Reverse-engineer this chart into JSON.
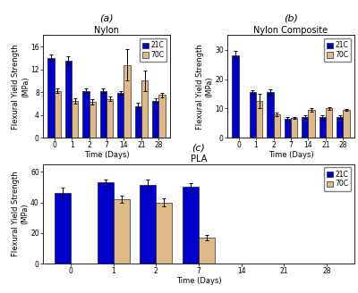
{
  "subplots": [
    {
      "label": "(a)",
      "title": "Nylon",
      "ylabel": "Flexural Yield Strength\n(MPa)",
      "xlabel": "Time (Days)",
      "ylim": [
        0,
        18
      ],
      "yticks": [
        0,
        4,
        8,
        12,
        16
      ],
      "categories": [
        "0",
        "1",
        "2",
        "7",
        "14",
        "21",
        "28"
      ],
      "val_21C": [
        14.0,
        13.5,
        8.2,
        8.2,
        7.9,
        5.5,
        6.5
      ],
      "val_70C": [
        8.2,
        6.5,
        6.3,
        6.8,
        12.8,
        10.0,
        7.5
      ],
      "err_21C": [
        0.6,
        0.8,
        0.4,
        0.4,
        0.3,
        0.7,
        0.4
      ],
      "err_70C": [
        0.4,
        0.5,
        0.4,
        0.4,
        2.8,
        1.8,
        0.4
      ],
      "mask_21C": [
        1,
        1,
        1,
        1,
        1,
        1,
        1
      ],
      "mask_70C": [
        1,
        1,
        1,
        1,
        1,
        1,
        1
      ]
    },
    {
      "label": "(b)",
      "title": "Nylon Composite",
      "ylabel": "Flexural Yield Strength\n(MPa)",
      "xlabel": "Time (Days)",
      "ylim": [
        0,
        35
      ],
      "yticks": [
        0,
        10,
        20,
        30
      ],
      "categories": [
        "0",
        "1",
        "2",
        "7",
        "14",
        "21",
        "28"
      ],
      "val_21C": [
        28.0,
        15.5,
        15.5,
        6.5,
        7.2,
        7.2,
        7.2
      ],
      "val_70C": [
        0.0,
        12.5,
        8.0,
        6.8,
        9.5,
        10.0,
        9.5
      ],
      "err_21C": [
        1.5,
        0.8,
        0.9,
        0.5,
        0.5,
        0.5,
        0.4
      ],
      "err_70C": [
        0.0,
        2.5,
        0.5,
        0.4,
        0.7,
        0.5,
        0.4
      ],
      "mask_21C": [
        1,
        1,
        1,
        1,
        1,
        1,
        1
      ],
      "mask_70C": [
        0,
        1,
        1,
        1,
        1,
        1,
        1
      ]
    },
    {
      "label": "(c)",
      "title": "PLA",
      "ylabel": "Flexural Yield Strength\n(MPa)",
      "xlabel": "Time (Days)",
      "ylim": [
        0,
        65
      ],
      "yticks": [
        0,
        20,
        40,
        60
      ],
      "categories": [
        "0",
        "1",
        "2",
        "7",
        "14",
        "21",
        "28"
      ],
      "val_21C": [
        46.0,
        53.0,
        51.5,
        50.0,
        0.0,
        0.0,
        0.0
      ],
      "val_70C": [
        0.0,
        42.0,
        40.0,
        17.0,
        0.0,
        0.0,
        0.0
      ],
      "err_21C": [
        3.5,
        2.0,
        3.5,
        2.5,
        0.0,
        0.0,
        0.0
      ],
      "err_70C": [
        0.0,
        2.5,
        2.5,
        2.0,
        0.0,
        0.0,
        0.0
      ],
      "mask_21C": [
        1,
        1,
        1,
        1,
        0,
        0,
        0
      ],
      "mask_70C": [
        0,
        1,
        1,
        1,
        0,
        0,
        0
      ]
    }
  ],
  "color_21C": "#0000cc",
  "color_70C": "#deb887",
  "bar_width": 0.38,
  "legend_labels": [
    "21C",
    "70C"
  ],
  "edgecolor": "black",
  "ecolor": "black",
  "capsize": 1.5,
  "label_fontsize": 6.0,
  "title_fontsize": 7.0,
  "panel_label_fontsize": 8.0,
  "tick_fontsize": 5.5,
  "legend_fontsize": 5.5
}
